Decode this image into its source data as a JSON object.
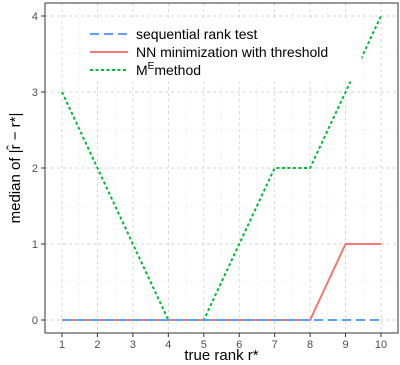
{
  "chart_data": {
    "type": "line",
    "xlabel": "true rank r*",
    "ylabel": "median of |r̂ − r*|",
    "x": [
      1,
      2,
      3,
      4,
      5,
      6,
      7,
      8,
      9,
      10
    ],
    "xlim": [
      1,
      10
    ],
    "ylim": [
      0,
      4
    ],
    "x_ticks": [
      "1",
      "2",
      "3",
      "4",
      "5",
      "6",
      "7",
      "8",
      "9",
      "10"
    ],
    "y_ticks": [
      "0",
      "1",
      "2",
      "3",
      "4"
    ],
    "grid": true,
    "legend_position": "top",
    "series": [
      {
        "name": "sequential rank test",
        "values": [
          0,
          0,
          0,
          0,
          0,
          0,
          0,
          0,
          0,
          0
        ],
        "color": "#619CFF",
        "dash": "long-dash"
      },
      {
        "name": "NN minimization with threshold",
        "values": [
          0,
          0,
          0,
          0,
          0,
          0,
          0,
          0,
          1,
          1
        ],
        "color": "#F8766D",
        "dash": "solid"
      },
      {
        "name": "M^E method",
        "values": [
          3,
          2,
          1,
          0,
          0,
          1,
          2,
          2,
          3,
          4
        ],
        "color": "#00BA38",
        "dash": "dotted"
      }
    ]
  }
}
